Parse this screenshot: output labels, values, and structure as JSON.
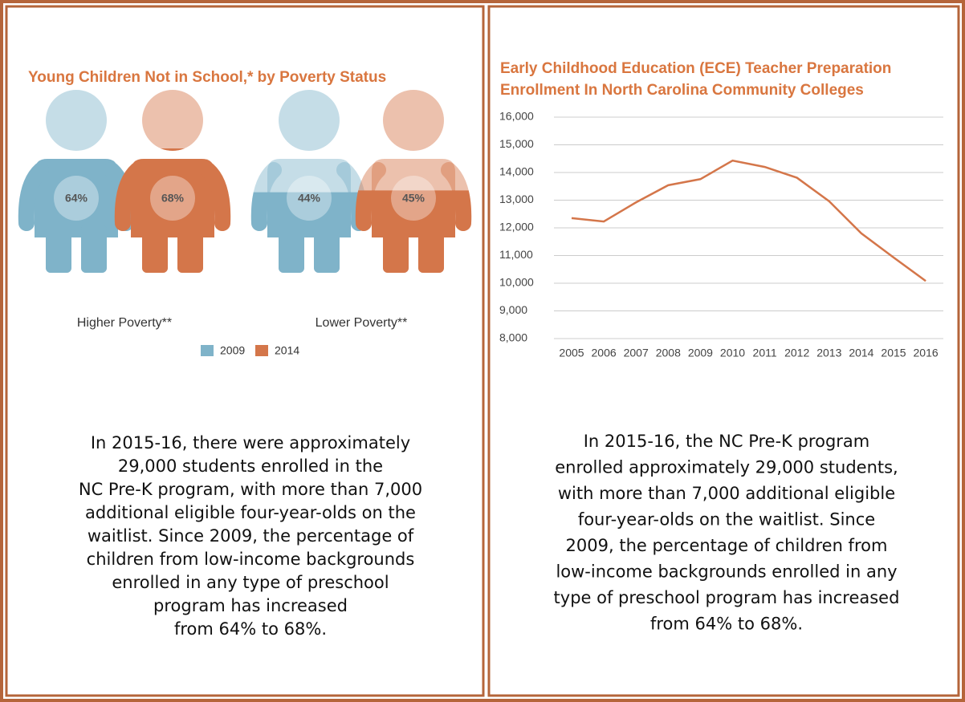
{
  "chart_data": [
    {
      "type": "pictogram",
      "title": "Young Children Not in School,* by Poverty Status",
      "categories": [
        "Higher Poverty**",
        "Lower Poverty**"
      ],
      "series": [
        {
          "name": "2009",
          "color": "#7fb3c9",
          "values": [
            64,
            44
          ],
          "value_labels": [
            "64%",
            "44%"
          ]
        },
        {
          "name": "2014",
          "color": "#d4764a",
          "values": [
            68,
            45
          ],
          "value_labels": [
            "68%",
            "45%"
          ]
        }
      ]
    },
    {
      "type": "line",
      "title": [
        "Early Childhood Education (ECE) Teacher Preparation",
        "Enrollment In North Carolina Community Colleges"
      ],
      "categories": [
        "2005",
        "2006",
        "2007",
        "2008",
        "2009",
        "2010",
        "2011",
        "2012",
        "2013",
        "2014",
        "2015",
        "2016"
      ],
      "values": [
        12350,
        12230,
        12920,
        13540,
        13760,
        14430,
        14200,
        13810,
        12960,
        11800,
        10930,
        10080
      ],
      "color": "#d4764a",
      "ylim": [
        8000,
        16000
      ],
      "yticks": [
        {
          "value": 8000,
          "label": "8,000"
        },
        {
          "value": 9000,
          "label": "9,000"
        },
        {
          "value": 10000,
          "label": "10,000"
        },
        {
          "value": 11000,
          "label": "11,000"
        },
        {
          "value": 12000,
          "label": "12,000"
        },
        {
          "value": 13000,
          "label": "13,000"
        },
        {
          "value": 14000,
          "label": "14,000"
        },
        {
          "value": 15000,
          "label": "15,000"
        },
        {
          "value": 16000,
          "label": "16,000"
        }
      ],
      "grid": true
    }
  ],
  "panels": [
    {
      "text": [
        "In 2015-16, there were approximately",
        "29,000 students enrolled in the",
        "NC Pre-K program, with more than 7,000",
        "additional eligible four-year-olds on the",
        "waitlist. Since 2009, the percentage of",
        "children from low-income backgrounds",
        "enrolled in any type of preschool",
        "program has increased",
        "from 64% to 68%."
      ]
    },
    {
      "text": [
        "In 2015-16, the NC Pre-K program",
        "enrolled approximately 29,000 students,",
        "with more than 7,000 additional eligible",
        "four-year-olds on the waitlist. Since",
        "2009, the percentage of children from",
        "low-income backgrounds enrolled in any",
        "type of preschool program has increased",
        "from 64% to 68%."
      ]
    }
  ]
}
